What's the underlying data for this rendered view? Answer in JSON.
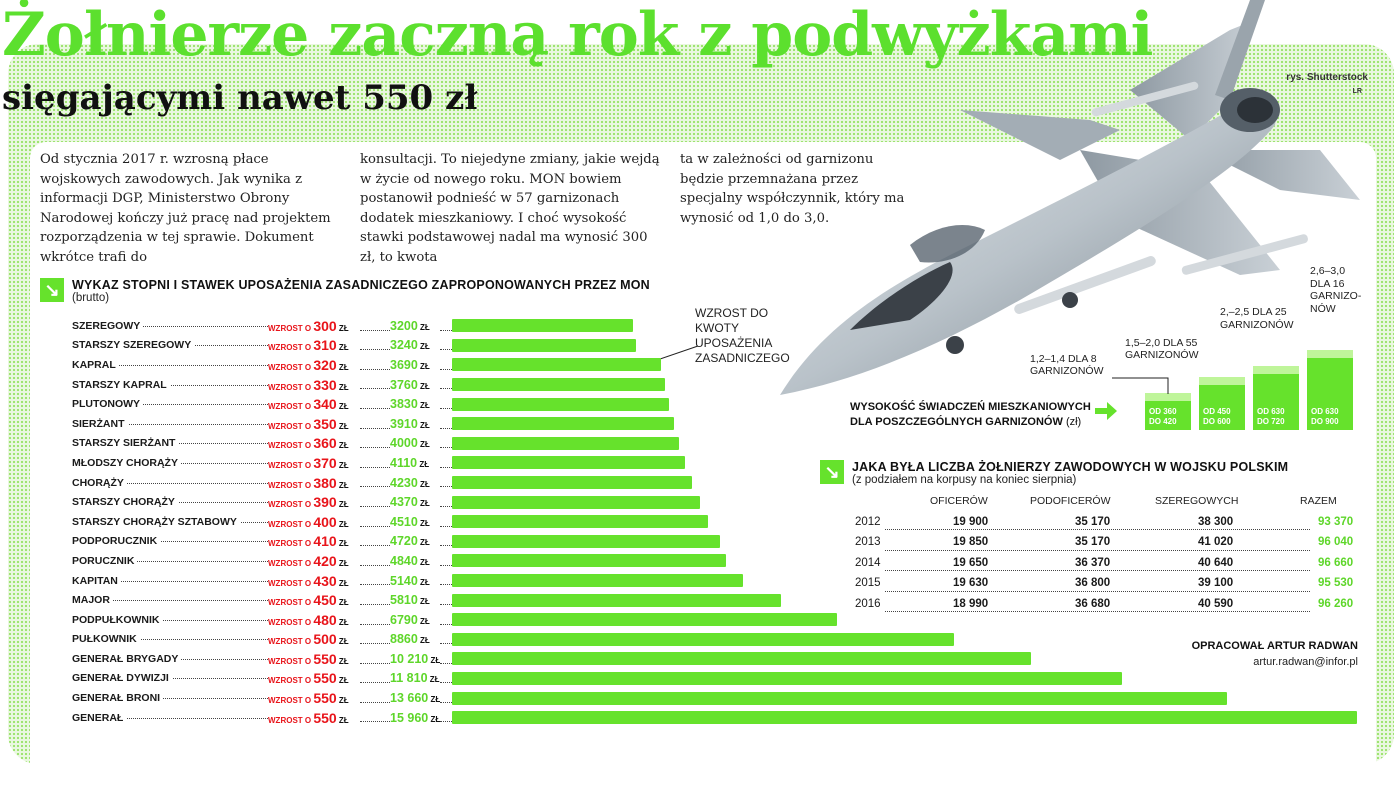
{
  "header": {
    "title": "Żołnierze zaczną rok z podwyżkami",
    "subtitle": "sięgającymi nawet 550 zł",
    "credit": "rys. Shutterstock",
    "credit_small": "LR"
  },
  "intro": {
    "col1": "Od stycznia 2017 r. wzrosną płace wojskowych zawodowych. Jak wynika z informacji DGP, Ministerstwo Obrony Narodowej kończy już pracę nad projektem rozporządzenia w tej sprawie. Dokument wkrótce trafi do",
    "col2": "konsultacji. To niejedyne zmiany, jakie wejdą w życie od nowego roku. MON bowiem postanowił podnieść w 57 garnizonach dodatek mieszkaniowy. I choć wysokość stawki podstawowej nadal ma wynosić 300 zł, to kwota",
    "col3": "ta w zależności od garnizonu będzie przemnażana przez specjalny współczynnik, który ma wynosić od 1,0 do 3,0."
  },
  "pay_section": {
    "title": "Wykaz stopni i stawek uposażenia zasadniczego zaproponowanych przez MON",
    "subtitle": "(brutto)",
    "arrow": "↘",
    "increase_prefix": "wzrost o",
    "unit": "zł",
    "callout": "Wzrost do kwoty uposażenia zasadniczego"
  },
  "chart_data": [
    {
      "type": "bar",
      "title": "Wykaz stopni i stawek uposażenia zasadniczego zaproponowanych przez MON",
      "subtitle": "(brutto)",
      "orientation": "horizontal",
      "categories": [
        "Szeregowy",
        "Starszy szeregowy",
        "Kapral",
        "Starszy kapral",
        "Plutonowy",
        "Sierżant",
        "Starszy sierżant",
        "Młodszy chorąży",
        "Chorąży",
        "Starszy chorąży",
        "Starszy chorąży sztabowy",
        "Podporucznik",
        "Porucznik",
        "Kapitan",
        "Major",
        "Podpułkownik",
        "Pułkownik",
        "Generał brygady",
        "Generał dywizji",
        "Generał broni",
        "Generał"
      ],
      "series": [
        {
          "name": "wzrost",
          "values": [
            300,
            310,
            320,
            330,
            340,
            350,
            360,
            370,
            380,
            390,
            400,
            410,
            420,
            430,
            450,
            480,
            500,
            550,
            550,
            550,
            550
          ]
        },
        {
          "name": "uposażenie",
          "values": [
            3200,
            3240,
            3690,
            3760,
            3830,
            3910,
            4000,
            4110,
            4230,
            4370,
            4510,
            4720,
            4840,
            5140,
            5810,
            6790,
            8860,
            10210,
            11810,
            13660,
            15960
          ]
        }
      ],
      "value_labels": [
        "3200",
        "3240",
        "3690",
        "3760",
        "3830",
        "3910",
        "4000",
        "4110",
        "4230",
        "4370",
        "4510",
        "4720",
        "4840",
        "5140",
        "5810",
        "6790",
        "8860",
        "10 210",
        "11 810",
        "13 660",
        "15 960"
      ],
      "xlim": [
        0,
        15960
      ]
    },
    {
      "type": "bar",
      "title": "Wysokość świadczeń mieszkaniowych dla poszczególnych garnizonów",
      "unit": "(zł)",
      "categories": [
        "1,2–1,4 dla 8 garnizonów",
        "1,5–2,0 dla 55 garnizonów",
        "2,–2,5 dla 25 garnizonów",
        "2,6–3,0 dla 16 garnizonów"
      ],
      "series": [
        {
          "name": "od",
          "values": [
            360,
            450,
            630,
            630
          ]
        },
        {
          "name": "do",
          "values": [
            420,
            600,
            720,
            900
          ]
        }
      ],
      "bar_labels": [
        [
          "od 360",
          "do 420"
        ],
        [
          "od 450",
          "do 600"
        ],
        [
          "od 630",
          "do 720"
        ],
        [
          "od 630",
          "do 900"
        ]
      ],
      "ylim": [
        0,
        900
      ]
    },
    {
      "type": "table",
      "title": "Jaka była liczba żołnierzy zawodowych w Wojsku Polskim",
      "subtitle": "(z podziałem na korpusy na koniec sierpnia)",
      "columns": [
        "oficerów",
        "podoficerów",
        "szeregowych",
        "razem"
      ],
      "rows": [
        {
          "year": "2012",
          "values": [
            "19 900",
            "35 170",
            "38 300",
            "93 370"
          ]
        },
        {
          "year": "2013",
          "values": [
            "19 850",
            "35 170",
            "41 020",
            "96 040"
          ]
        },
        {
          "year": "2014",
          "values": [
            "19 650",
            "36 370",
            "40 640",
            "96 660"
          ]
        },
        {
          "year": "2015",
          "values": [
            "19 630",
            "36 800",
            "39 100",
            "95 530"
          ]
        },
        {
          "year": "2016",
          "values": [
            "18 990",
            "36 680",
            "40 590",
            "96 260"
          ]
        }
      ]
    }
  ],
  "garrison": {
    "notes": [
      "1,2–1,4 dla 8 garnizonów",
      "1,5–2,0 dla 55 garnizonów",
      "2,–2,5 dla 25 garnizonów",
      "2,6–3,0 dla 16 garnizo- nów"
    ],
    "title_line1": "Wysokość świadczeń mieszkaniowych",
    "title_line2": "dla poszczególnych garnizonów",
    "title_unit": "(zł)"
  },
  "soldiers": {
    "title": "Jaka była liczba żołnierzy zawodowych w Wojsku Polskim",
    "subtitle": "(z podziałem na korpusy na koniec sierpnia)"
  },
  "footer": {
    "author": "Opracował Artur Radwan",
    "email": "artur.radwan@infor.pl"
  },
  "colors": {
    "accent": "#66e22c",
    "increase": "#e8141a",
    "value": "#5ed62a"
  }
}
